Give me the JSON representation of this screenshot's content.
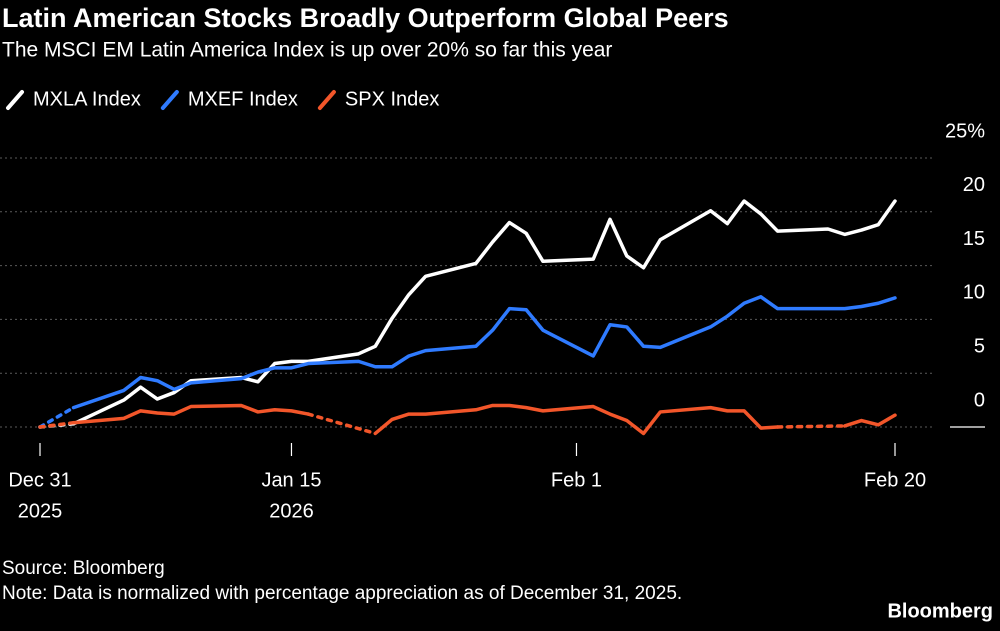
{
  "chart_data": {
    "type": "line",
    "title": "Latin American Stocks Broadly Outperform Global Peers",
    "subtitle": "The MSCI EM Latin America Index is up over 20% so far this year",
    "source": "Source: Bloomberg",
    "note": "Note: Data is normalized with percentage appreciation as of December 31, 2025.",
    "brand": "Bloomberg",
    "x": [
      "2025-12-31",
      "2026-01-01",
      "2026-01-02",
      "2026-01-05",
      "2026-01-06",
      "2026-01-07",
      "2026-01-08",
      "2026-01-09",
      "2026-01-12",
      "2026-01-13",
      "2026-01-14",
      "2026-01-15",
      "2026-01-16",
      "2026-01-19",
      "2026-01-20",
      "2026-01-21",
      "2026-01-22",
      "2026-01-23",
      "2026-01-26",
      "2026-01-27",
      "2026-01-28",
      "2026-01-29",
      "2026-01-30",
      "2026-02-02",
      "2026-02-03",
      "2026-02-04",
      "2026-02-05",
      "2026-02-06",
      "2026-02-09",
      "2026-02-10",
      "2026-02-11",
      "2026-02-12",
      "2026-02-13",
      "2026-02-16",
      "2026-02-17",
      "2026-02-18",
      "2026-02-19",
      "2026-02-20"
    ],
    "series": [
      {
        "name": "MXLA Index",
        "color": "#ffffff",
        "values": [
          0,
          null,
          0.3,
          2.5,
          3.7,
          2.6,
          3.2,
          4.3,
          4.6,
          4.2,
          5.9,
          6.1,
          6.1,
          6.8,
          7.5,
          10.1,
          12.3,
          14.0,
          15.2,
          17.2,
          19.0,
          18.0,
          15.4,
          15.6,
          19.3,
          15.9,
          14.8,
          17.4,
          20.1,
          18.9,
          21.0,
          19.8,
          18.2,
          18.4,
          17.9,
          18.3,
          18.8,
          21.0
        ]
      },
      {
        "name": "MXEF Index",
        "color": "#2f7bff",
        "values": [
          0,
          null,
          1.8,
          3.4,
          4.6,
          4.3,
          3.5,
          4.1,
          4.5,
          5.1,
          5.5,
          5.5,
          5.9,
          6.1,
          5.6,
          5.6,
          6.6,
          7.1,
          7.5,
          9.0,
          11.0,
          10.9,
          9.0,
          6.6,
          9.5,
          9.3,
          7.5,
          7.4,
          9.3,
          10.3,
          11.5,
          12.1,
          11.0,
          11.0,
          11.0,
          11.2,
          11.5,
          12.0
        ]
      },
      {
        "name": "SPX Index",
        "color": "#f2562a",
        "values": [
          0,
          null,
          0.4,
          0.8,
          1.5,
          1.3,
          1.2,
          1.9,
          2.0,
          1.4,
          1.6,
          1.5,
          1.2,
          null,
          -0.6,
          0.7,
          1.2,
          1.2,
          1.6,
          2.0,
          2.0,
          1.8,
          1.5,
          1.9,
          1.2,
          0.6,
          -0.6,
          1.4,
          1.8,
          1.5,
          1.5,
          -0.1,
          0.0,
          null,
          0.1,
          0.6,
          0.2,
          1.1
        ]
      }
    ],
    "xlim": [
      "2025-12-31",
      "2026-02-20"
    ],
    "xticks": [
      {
        "value": "2025-12-31",
        "label": "Dec 31",
        "year": "2025"
      },
      {
        "value": "2026-01-15",
        "label": "Jan 15",
        "year": "2026"
      },
      {
        "value": "2026-02-01",
        "label": "Feb 1"
      },
      {
        "value": "2026-02-20",
        "label": "Feb 20"
      }
    ],
    "ylim": [
      -2.5,
      25
    ],
    "yticks": [
      0,
      5,
      10,
      15,
      20,
      {
        "value": 25,
        "label": "25%"
      }
    ],
    "grid": true
  }
}
